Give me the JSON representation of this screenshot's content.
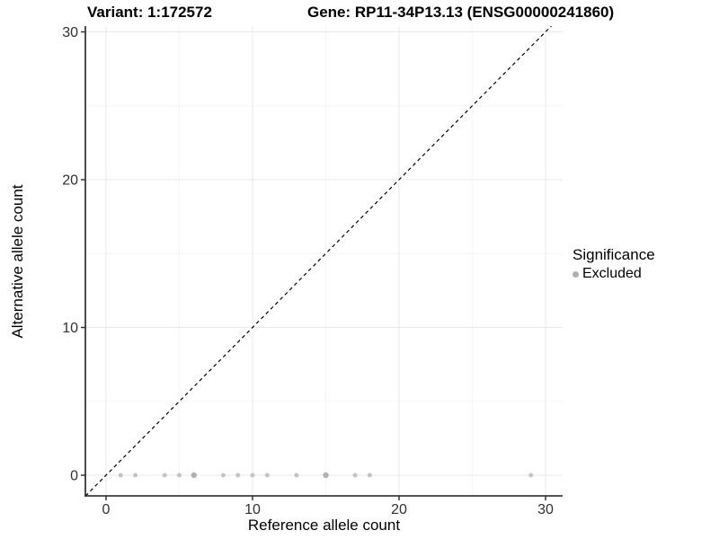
{
  "titles": {
    "variant": "Variant: 1:172572",
    "gene": "Gene: RP11-34P13.13 (ENSG00000241860)"
  },
  "legend": {
    "title": "Significance",
    "position": "right",
    "items": [
      {
        "label": "Excluded",
        "color": "#b0b0b0"
      }
    ]
  },
  "chart_data": {
    "type": "scatter",
    "title": "",
    "xlabel": "Reference allele count",
    "ylabel": "Alternative allele count",
    "xlim": [
      -1.5,
      31.5
    ],
    "ylim": [
      -1.5,
      30.5
    ],
    "x_ticks": [
      0,
      10,
      20,
      30
    ],
    "y_ticks": [
      0,
      10,
      20,
      30
    ],
    "grid": "major+minor",
    "identity_line": {
      "style": "dashed",
      "slope": 1,
      "intercept": 0,
      "color": "#000000"
    },
    "series": [
      {
        "name": "Excluded",
        "color": "#c4c4c4",
        "points": [
          {
            "x": 1,
            "y": 0
          },
          {
            "x": 2,
            "y": 0
          },
          {
            "x": 4,
            "y": 0
          },
          {
            "x": 5,
            "y": 0
          },
          {
            "x": 6,
            "y": 0,
            "overlap": true
          },
          {
            "x": 8,
            "y": 0
          },
          {
            "x": 9,
            "y": 0
          },
          {
            "x": 10,
            "y": 0
          },
          {
            "x": 11,
            "y": 0
          },
          {
            "x": 13,
            "y": 0
          },
          {
            "x": 15,
            "y": 0,
            "overlap": true
          },
          {
            "x": 17,
            "y": 0
          },
          {
            "x": 18,
            "y": 0
          },
          {
            "x": 29,
            "y": 0
          }
        ]
      }
    ]
  },
  "colors": {
    "background": "#ffffff",
    "grid_major": "#e9e9e9",
    "grid_minor": "#f5f5f5",
    "axis_line": "#1f1f1f",
    "tick_mark": "#333333",
    "tick_label": "#303030",
    "point": "#c4c4c4",
    "point_overlap": "#b0b0b0",
    "identity_line": "#000000"
  }
}
